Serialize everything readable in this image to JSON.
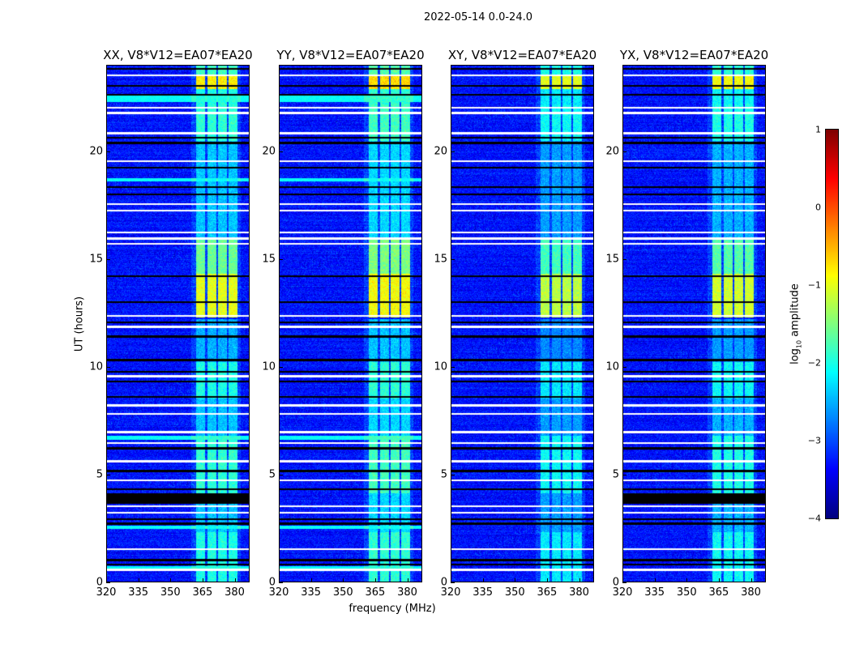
{
  "chart_data": {
    "type": "heatmap",
    "title": "2022-05-14 0.0-24.0",
    "xlabel": "frequency (MHz)",
    "ylabel": "UT (hours)",
    "xlim": [
      320,
      387
    ],
    "ylim": [
      0,
      24
    ],
    "xticks": [
      320,
      335,
      350,
      365,
      380
    ],
    "yticks": [
      0,
      5,
      10,
      15,
      20
    ],
    "panels": [
      {
        "title": "XX, V8*V12=EA07*EA20",
        "pol": "XX",
        "gain": 0.0,
        "black_block": true,
        "cyan_rows": true
      },
      {
        "title": "YY, V8*V12=EA07*EA20",
        "pol": "YY",
        "gain": 0.1,
        "black_block": false,
        "cyan_rows": true
      },
      {
        "title": "XY, V8*V12=EA07*EA20",
        "pol": "XY",
        "gain": -0.2,
        "black_block": false,
        "cyan_rows": false
      },
      {
        "title": "YX, V8*V12=EA07*EA20",
        "pol": "YX",
        "gain": -0.1,
        "black_block": true,
        "cyan_rows": false
      }
    ],
    "colorbar": {
      "label": "log10 amplitude",
      "label_main": "log",
      "label_sub": "10",
      "label_rest": " amplitude",
      "colormap": "jet",
      "vmin": -4,
      "vmax": 1,
      "ticks": [
        "1",
        "0",
        "−1",
        "−2",
        "−3",
        "−4"
      ],
      "tick_values": [
        1,
        0,
        -1,
        -2,
        -3,
        -4
      ]
    },
    "background_level": -3.3,
    "rfi_subbands_mhz": [
      [
        362,
        366.5
      ],
      [
        367.5,
        371.5
      ],
      [
        372.5,
        376.5
      ],
      [
        377.5,
        381.5
      ]
    ],
    "rfi_activity_hours": [
      {
        "from": 0,
        "to": 2.3,
        "level": -2.0
      },
      {
        "from": 2.3,
        "to": 4.1,
        "level": -2.4
      },
      {
        "from": 4.1,
        "to": 6.8,
        "level": -1.9
      },
      {
        "from": 6.8,
        "to": 8.5,
        "level": -2.4
      },
      {
        "from": 8.5,
        "to": 10.2,
        "level": -2.0
      },
      {
        "from": 10.2,
        "to": 12.2,
        "level": -2.5
      },
      {
        "from": 12.3,
        "to": 14.3,
        "level": -1.0
      },
      {
        "from": 14.3,
        "to": 16.0,
        "level": -1.6
      },
      {
        "from": 16.0,
        "to": 20.5,
        "level": -2.4
      },
      {
        "from": 20.5,
        "to": 22.2,
        "level": -1.9
      },
      {
        "from": 22.2,
        "to": 22.9,
        "level": -2.0
      },
      {
        "from": 22.9,
        "to": 23.6,
        "level": -0.8
      },
      {
        "from": 23.6,
        "to": 24.0,
        "level": -1.8
      }
    ],
    "flagged_white_hours": [
      23.55,
      22.05,
      21.8,
      20.85,
      19.55,
      17.55,
      17.25,
      16.25,
      15.95,
      15.7,
      12.35,
      11.85,
      9.55,
      8.2,
      7.8,
      6.95,
      6.45,
      5.6,
      4.7,
      3.5,
      3.2,
      1.5,
      0.55
    ],
    "flagged_black_hours": [
      23.85,
      23.05,
      22.65,
      20.65,
      20.4,
      19.25,
      18.35,
      18.0,
      14.2,
      13.0,
      12.05,
      11.4,
      10.3,
      9.75,
      9.3,
      8.6,
      6.2,
      5.15,
      4.3,
      2.9,
      2.7,
      1.0,
      0.8
    ],
    "black_block_hours": [
      3.6,
      4.1
    ],
    "cyan_row_hours": [
      [
        22.3,
        22.6
      ],
      [
        18.6,
        18.75
      ],
      [
        6.6,
        6.8
      ],
      [
        2.45,
        2.6
      ],
      [
        0.55,
        0.7
      ]
    ]
  }
}
